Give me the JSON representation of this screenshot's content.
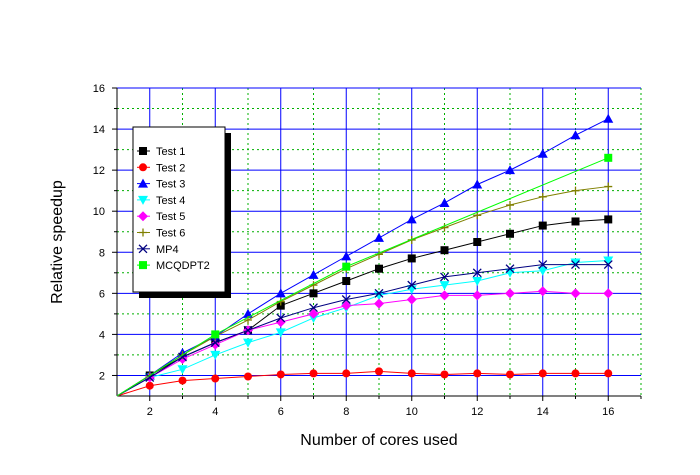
{
  "chart_data": {
    "type": "line",
    "xlabel": "Number of cores used",
    "ylabel": "Relative speedup",
    "xlim": [
      1,
      17
    ],
    "ylim": [
      1,
      16
    ],
    "xticks": [
      2,
      4,
      6,
      8,
      10,
      12,
      14,
      16
    ],
    "xtick_labels": [
      "2",
      "4",
      "6",
      "8",
      "10",
      "12",
      "14",
      "16"
    ],
    "yticks": [
      2,
      4,
      6,
      8,
      10,
      12,
      14,
      16
    ],
    "ytick_labels": [
      "2",
      "4",
      "6",
      "8",
      "10",
      "12",
      "14",
      "16"
    ],
    "grid": true,
    "legend_position": "top-left",
    "series": [
      {
        "name": "Test 1",
        "color": "#000000",
        "marker": "square",
        "x": [
          1,
          2,
          3,
          4,
          5,
          6,
          7,
          8,
          9,
          10,
          11,
          12,
          13,
          14,
          15,
          16
        ],
        "y": [
          1,
          2.0,
          2.9,
          3.6,
          4.2,
          5.4,
          6.0,
          6.6,
          7.2,
          7.7,
          8.1,
          8.5,
          8.9,
          9.3,
          9.5,
          9.6
        ]
      },
      {
        "name": "Test 2",
        "color": "#ff0000",
        "marker": "circle",
        "x": [
          1,
          2,
          3,
          4,
          5,
          6,
          7,
          8,
          9,
          10,
          11,
          12,
          13,
          14,
          15,
          16
        ],
        "y": [
          1,
          1.5,
          1.75,
          1.85,
          1.95,
          2.05,
          2.1,
          2.1,
          2.2,
          2.1,
          2.05,
          2.1,
          2.05,
          2.1,
          2.1,
          2.1
        ]
      },
      {
        "name": "Test 3",
        "color": "#0000ff",
        "marker": "triangle-up",
        "x": [
          1,
          2,
          3,
          4,
          5,
          6,
          7,
          8,
          9,
          10,
          11,
          12,
          13,
          14,
          15,
          16
        ],
        "y": [
          1,
          2.0,
          3.1,
          3.9,
          5.0,
          6.0,
          6.9,
          7.8,
          8.7,
          9.6,
          10.4,
          11.3,
          12.0,
          12.8,
          13.7,
          14.5
        ]
      },
      {
        "name": "Test 4",
        "color": "#00ffff",
        "marker": "triangle-down",
        "x": [
          1,
          2,
          3,
          4,
          5,
          6,
          7,
          8,
          9,
          10,
          11,
          12,
          13,
          14,
          15,
          16
        ],
        "y": [
          1,
          1.9,
          2.3,
          3.0,
          3.6,
          4.1,
          4.8,
          5.3,
          5.9,
          6.2,
          6.4,
          6.6,
          7.0,
          7.1,
          7.5,
          7.6
        ]
      },
      {
        "name": "Test 5",
        "color": "#ff00ff",
        "marker": "diamond",
        "x": [
          1,
          2,
          3,
          4,
          5,
          6,
          7,
          8,
          9,
          10,
          11,
          12,
          13,
          14,
          15,
          16
        ],
        "y": [
          1,
          1.9,
          2.8,
          3.5,
          4.2,
          4.6,
          5.0,
          5.4,
          5.5,
          5.7,
          5.9,
          5.9,
          6.0,
          6.1,
          6.0,
          6.0
        ]
      },
      {
        "name": "Test 6",
        "color": "#808000",
        "marker": "plus",
        "x": [
          1,
          2,
          3,
          4,
          5,
          6,
          7,
          8,
          9,
          10,
          11,
          12,
          13,
          14,
          15,
          16
        ],
        "y": [
          1,
          2.0,
          3.0,
          3.9,
          4.7,
          5.6,
          6.4,
          7.2,
          7.9,
          8.6,
          9.2,
          9.8,
          10.3,
          10.7,
          11.0,
          11.2
        ]
      },
      {
        "name": "MP4",
        "color": "#000080",
        "marker": "x",
        "x": [
          1,
          2,
          3,
          4,
          5,
          6,
          7,
          8,
          9,
          10,
          11,
          12,
          13,
          14,
          15,
          16
        ],
        "y": [
          1,
          1.9,
          2.9,
          3.6,
          4.2,
          4.8,
          5.3,
          5.7,
          6.0,
          6.4,
          6.8,
          7.0,
          7.2,
          7.4,
          7.4,
          7.4
        ]
      },
      {
        "name": "MCQDPT2",
        "color": "#00ff00",
        "marker": "square",
        "x": [
          1,
          4,
          8,
          16
        ],
        "y": [
          1,
          4.0,
          7.3,
          12.6
        ]
      }
    ]
  }
}
